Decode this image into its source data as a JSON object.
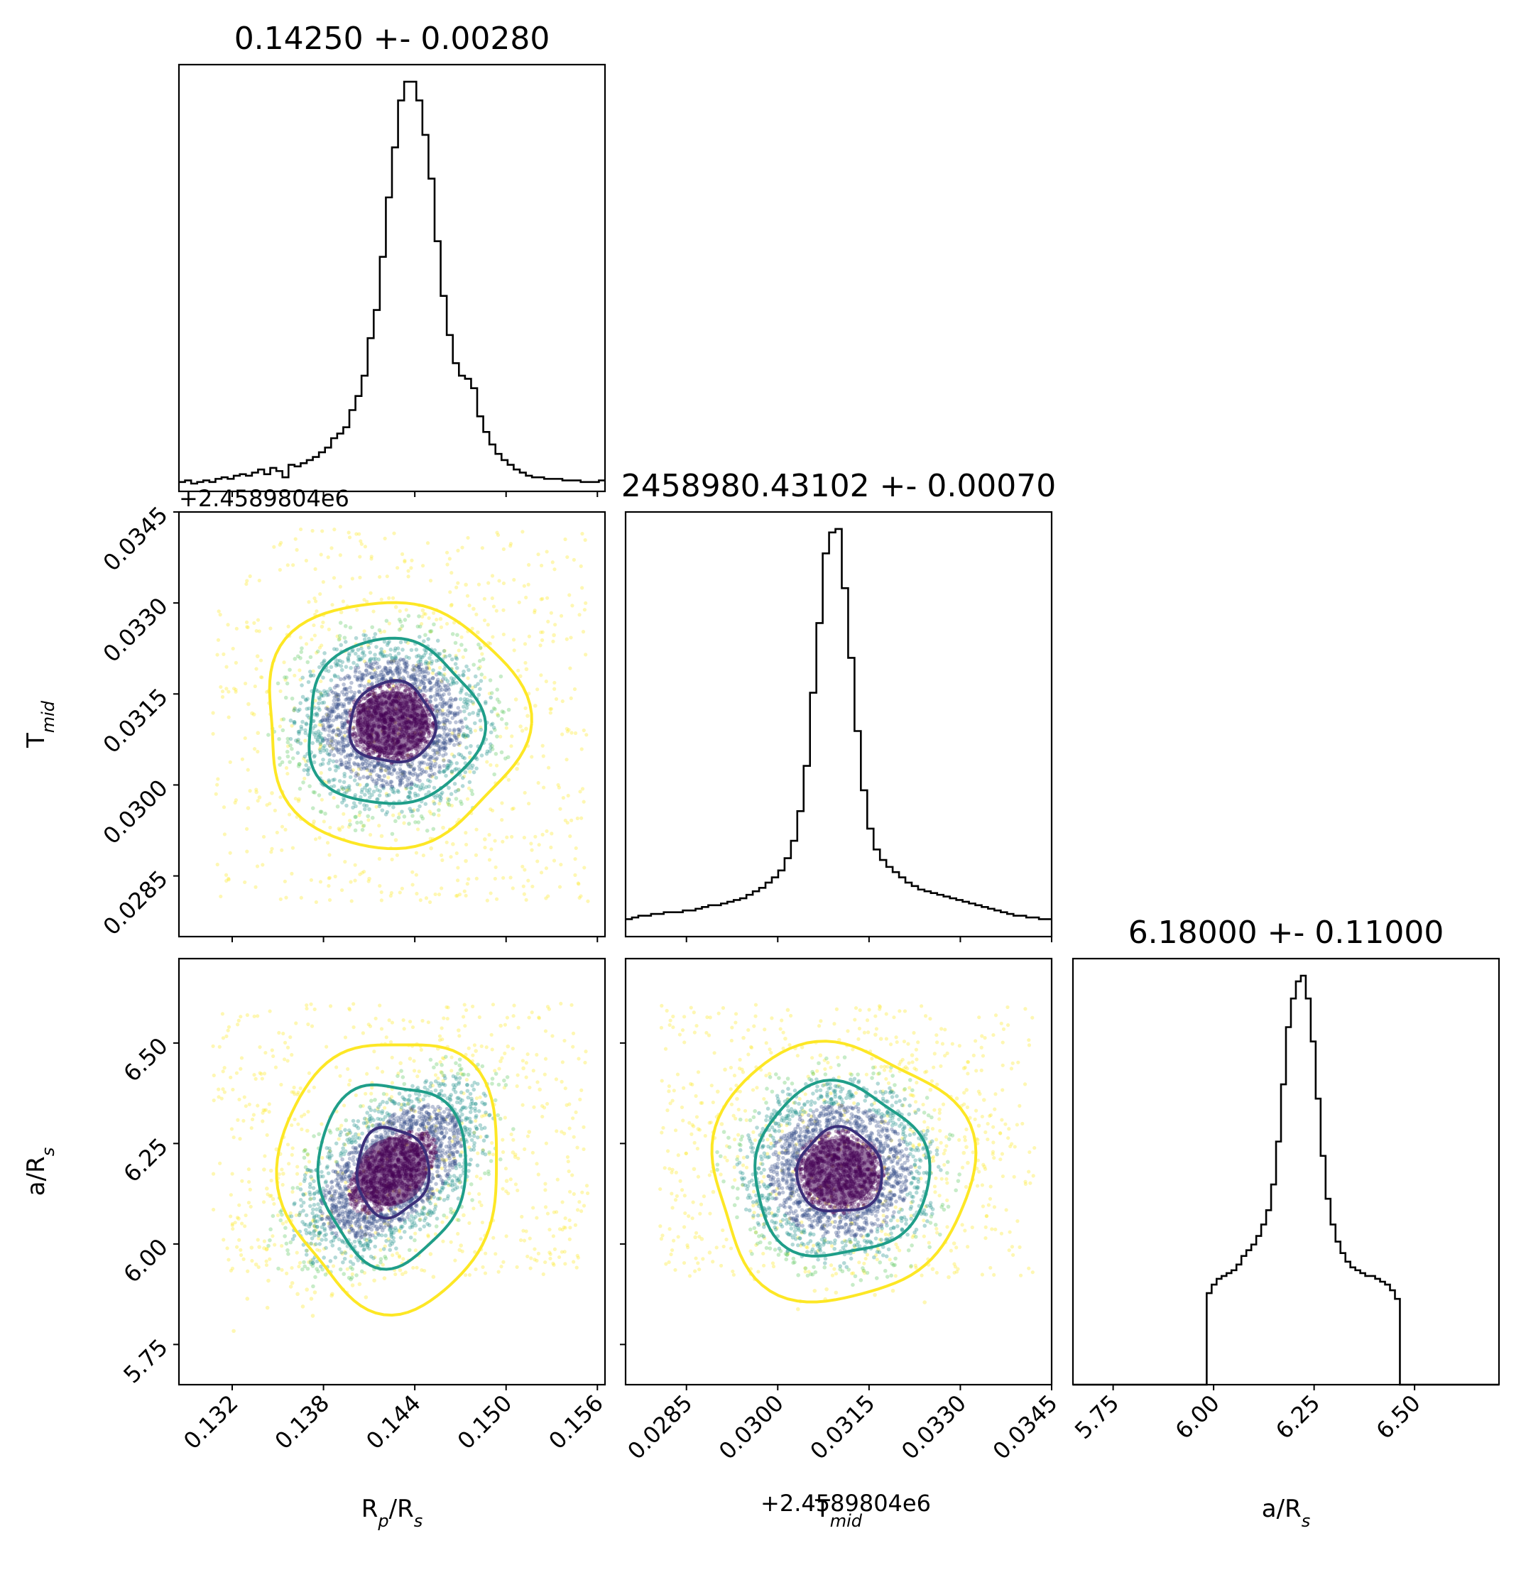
{
  "chart_data": {
    "type": "scatter",
    "params": [
      {
        "key": "rp",
        "label_base": "R",
        "label_sub": "p",
        "label_rest": "/R",
        "label_sub2": "s",
        "title": "0.14250 +- 0.00280",
        "range": [
          0.1285,
          0.1565
        ],
        "ticks": [
          "0.132",
          "0.138",
          "0.144",
          "0.150",
          "0.156"
        ],
        "tick_values": [
          0.132,
          0.138,
          0.144,
          0.15,
          0.156
        ],
        "mean": 0.1425,
        "sigma": 0.0028
      },
      {
        "key": "tmid",
        "label_base": "T",
        "label_sub": "mid",
        "label_rest": "",
        "label_sub2": "",
        "title": "2458980.43102 +- 0.00070",
        "offset_text": "+2.4589804e6",
        "range": [
          0.0275,
          0.0345
        ],
        "ticks": [
          "0.0285",
          "0.0300",
          "0.0315",
          "0.0330",
          "0.0345"
        ],
        "tick_values": [
          0.0285,
          0.03,
          0.0315,
          0.033,
          0.0345
        ],
        "mean": 0.03102,
        "sigma": 0.0007
      },
      {
        "key": "ars",
        "label_base": "a/R",
        "label_sub": "s",
        "label_rest": "",
        "label_sub2": "",
        "title": "6.18000 +- 0.11000",
        "range": [
          5.65,
          6.71
        ],
        "ticks": [
          "5.75",
          "6.00",
          "6.25",
          "6.50"
        ],
        "tick_values": [
          5.75,
          6.0,
          6.25,
          6.5
        ],
        "mean": 6.18,
        "sigma": 0.11
      }
    ],
    "histograms": {
      "rp": {
        "range": [
          0.1285,
          0.1565
        ],
        "counts": [
          6,
          7,
          5,
          6,
          7,
          6,
          8,
          9,
          8,
          10,
          11,
          10,
          12,
          14,
          11,
          15,
          13,
          9,
          17,
          16,
          18,
          20,
          22,
          25,
          28,
          34,
          37,
          41,
          52,
          61,
          74,
          98,
          116,
          150,
          188,
          220,
          250,
          262,
          262,
          250,
          228,
          200,
          160,
          125,
          100,
          82,
          74,
          72,
          66,
          48,
          38,
          30,
          24,
          20,
          17,
          14,
          12,
          10,
          9,
          9,
          8,
          8,
          8,
          7,
          7,
          7,
          6,
          6,
          6,
          7
        ]
      },
      "tmid": {
        "range": [
          0.0275,
          0.0345
        ],
        "counts": [
          10,
          11,
          12,
          12,
          13,
          13,
          14,
          14,
          14,
          15,
          15,
          16,
          17,
          18,
          18,
          19,
          20,
          21,
          22,
          24,
          26,
          28,
          31,
          34,
          38,
          45,
          55,
          72,
          98,
          140,
          180,
          220,
          232,
          234,
          200,
          160,
          118,
          84,
          62,
          50,
          44,
          40,
          37,
          34,
          31,
          29,
          27,
          26,
          25,
          24,
          23,
          22,
          21,
          20,
          19,
          18,
          17,
          16,
          15,
          14,
          13,
          12,
          12,
          11,
          11,
          10,
          10
        ]
      },
      "ars": {
        "range": [
          5.65,
          6.71
        ],
        "counts": [
          0,
          0,
          0,
          0,
          0,
          0,
          0,
          0,
          0,
          0,
          0,
          0,
          0,
          0,
          0,
          0,
          0,
          0,
          0,
          0,
          0,
          0,
          0,
          0,
          0,
          0,
          0,
          64,
          70,
          74,
          76,
          78,
          80,
          84,
          90,
          94,
          98,
          104,
          112,
          122,
          140,
          170,
          210,
          250,
          270,
          282,
          286,
          270,
          240,
          200,
          160,
          130,
          112,
          100,
          92,
          86,
          82,
          80,
          78,
          76,
          76,
          74,
          72,
          70,
          66,
          60,
          0,
          0,
          0,
          0,
          0,
          0,
          0,
          0,
          0,
          0,
          0,
          0,
          0,
          0,
          0,
          0,
          0,
          0,
          0,
          0
        ]
      }
    },
    "pairs": [
      {
        "x": "rp",
        "y": "tmid",
        "correlation": 0.0
      },
      {
        "x": "rp",
        "y": "ars",
        "correlation": 0.55
      },
      {
        "x": "tmid",
        "y": "ars",
        "correlation": 0.0
      }
    ],
    "contour_levels": [
      "1-sigma",
      "2-sigma",
      "3-sigma"
    ],
    "colors": {
      "sigma1": "#3b2f7a",
      "sigma2": "#1f9e89",
      "sigma3": "#fde725",
      "points": [
        "#440154",
        "#3b528b",
        "#21918c",
        "#5ec962",
        "#fde725"
      ],
      "hist": "#000000"
    }
  }
}
